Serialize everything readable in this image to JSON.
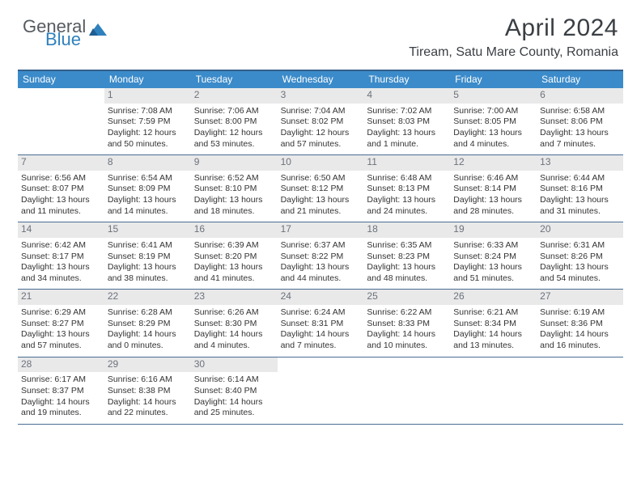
{
  "logo": {
    "text_general": "General",
    "text_blue": "Blue"
  },
  "title": "April 2024",
  "location": "Tiream, Satu Mare County, Romania",
  "colors": {
    "header_bg": "#3b8bca",
    "header_border_top": "#355f8b",
    "row_divider": "#4a6d92",
    "daynum_bg": "#e9e9ea",
    "daynum_text": "#6c727a",
    "body_text": "#333333",
    "logo_gray": "#555b60",
    "logo_blue": "#2f81bd"
  },
  "day_headers": [
    "Sunday",
    "Monday",
    "Tuesday",
    "Wednesday",
    "Thursday",
    "Friday",
    "Saturday"
  ],
  "weeks": [
    [
      {
        "empty": true
      },
      {
        "num": "1",
        "sunrise": "Sunrise: 7:08 AM",
        "sunset": "Sunset: 7:59 PM",
        "daylight1": "Daylight: 12 hours",
        "daylight2": "and 50 minutes."
      },
      {
        "num": "2",
        "sunrise": "Sunrise: 7:06 AM",
        "sunset": "Sunset: 8:00 PM",
        "daylight1": "Daylight: 12 hours",
        "daylight2": "and 53 minutes."
      },
      {
        "num": "3",
        "sunrise": "Sunrise: 7:04 AM",
        "sunset": "Sunset: 8:02 PM",
        "daylight1": "Daylight: 12 hours",
        "daylight2": "and 57 minutes."
      },
      {
        "num": "4",
        "sunrise": "Sunrise: 7:02 AM",
        "sunset": "Sunset: 8:03 PM",
        "daylight1": "Daylight: 13 hours",
        "daylight2": "and 1 minute."
      },
      {
        "num": "5",
        "sunrise": "Sunrise: 7:00 AM",
        "sunset": "Sunset: 8:05 PM",
        "daylight1": "Daylight: 13 hours",
        "daylight2": "and 4 minutes."
      },
      {
        "num": "6",
        "sunrise": "Sunrise: 6:58 AM",
        "sunset": "Sunset: 8:06 PM",
        "daylight1": "Daylight: 13 hours",
        "daylight2": "and 7 minutes."
      }
    ],
    [
      {
        "num": "7",
        "sunrise": "Sunrise: 6:56 AM",
        "sunset": "Sunset: 8:07 PM",
        "daylight1": "Daylight: 13 hours",
        "daylight2": "and 11 minutes."
      },
      {
        "num": "8",
        "sunrise": "Sunrise: 6:54 AM",
        "sunset": "Sunset: 8:09 PM",
        "daylight1": "Daylight: 13 hours",
        "daylight2": "and 14 minutes."
      },
      {
        "num": "9",
        "sunrise": "Sunrise: 6:52 AM",
        "sunset": "Sunset: 8:10 PM",
        "daylight1": "Daylight: 13 hours",
        "daylight2": "and 18 minutes."
      },
      {
        "num": "10",
        "sunrise": "Sunrise: 6:50 AM",
        "sunset": "Sunset: 8:12 PM",
        "daylight1": "Daylight: 13 hours",
        "daylight2": "and 21 minutes."
      },
      {
        "num": "11",
        "sunrise": "Sunrise: 6:48 AM",
        "sunset": "Sunset: 8:13 PM",
        "daylight1": "Daylight: 13 hours",
        "daylight2": "and 24 minutes."
      },
      {
        "num": "12",
        "sunrise": "Sunrise: 6:46 AM",
        "sunset": "Sunset: 8:14 PM",
        "daylight1": "Daylight: 13 hours",
        "daylight2": "and 28 minutes."
      },
      {
        "num": "13",
        "sunrise": "Sunrise: 6:44 AM",
        "sunset": "Sunset: 8:16 PM",
        "daylight1": "Daylight: 13 hours",
        "daylight2": "and 31 minutes."
      }
    ],
    [
      {
        "num": "14",
        "sunrise": "Sunrise: 6:42 AM",
        "sunset": "Sunset: 8:17 PM",
        "daylight1": "Daylight: 13 hours",
        "daylight2": "and 34 minutes."
      },
      {
        "num": "15",
        "sunrise": "Sunrise: 6:41 AM",
        "sunset": "Sunset: 8:19 PM",
        "daylight1": "Daylight: 13 hours",
        "daylight2": "and 38 minutes."
      },
      {
        "num": "16",
        "sunrise": "Sunrise: 6:39 AM",
        "sunset": "Sunset: 8:20 PM",
        "daylight1": "Daylight: 13 hours",
        "daylight2": "and 41 minutes."
      },
      {
        "num": "17",
        "sunrise": "Sunrise: 6:37 AM",
        "sunset": "Sunset: 8:22 PM",
        "daylight1": "Daylight: 13 hours",
        "daylight2": "and 44 minutes."
      },
      {
        "num": "18",
        "sunrise": "Sunrise: 6:35 AM",
        "sunset": "Sunset: 8:23 PM",
        "daylight1": "Daylight: 13 hours",
        "daylight2": "and 48 minutes."
      },
      {
        "num": "19",
        "sunrise": "Sunrise: 6:33 AM",
        "sunset": "Sunset: 8:24 PM",
        "daylight1": "Daylight: 13 hours",
        "daylight2": "and 51 minutes."
      },
      {
        "num": "20",
        "sunrise": "Sunrise: 6:31 AM",
        "sunset": "Sunset: 8:26 PM",
        "daylight1": "Daylight: 13 hours",
        "daylight2": "and 54 minutes."
      }
    ],
    [
      {
        "num": "21",
        "sunrise": "Sunrise: 6:29 AM",
        "sunset": "Sunset: 8:27 PM",
        "daylight1": "Daylight: 13 hours",
        "daylight2": "and 57 minutes."
      },
      {
        "num": "22",
        "sunrise": "Sunrise: 6:28 AM",
        "sunset": "Sunset: 8:29 PM",
        "daylight1": "Daylight: 14 hours",
        "daylight2": "and 0 minutes."
      },
      {
        "num": "23",
        "sunrise": "Sunrise: 6:26 AM",
        "sunset": "Sunset: 8:30 PM",
        "daylight1": "Daylight: 14 hours",
        "daylight2": "and 4 minutes."
      },
      {
        "num": "24",
        "sunrise": "Sunrise: 6:24 AM",
        "sunset": "Sunset: 8:31 PM",
        "daylight1": "Daylight: 14 hours",
        "daylight2": "and 7 minutes."
      },
      {
        "num": "25",
        "sunrise": "Sunrise: 6:22 AM",
        "sunset": "Sunset: 8:33 PM",
        "daylight1": "Daylight: 14 hours",
        "daylight2": "and 10 minutes."
      },
      {
        "num": "26",
        "sunrise": "Sunrise: 6:21 AM",
        "sunset": "Sunset: 8:34 PM",
        "daylight1": "Daylight: 14 hours",
        "daylight2": "and 13 minutes."
      },
      {
        "num": "27",
        "sunrise": "Sunrise: 6:19 AM",
        "sunset": "Sunset: 8:36 PM",
        "daylight1": "Daylight: 14 hours",
        "daylight2": "and 16 minutes."
      }
    ],
    [
      {
        "num": "28",
        "sunrise": "Sunrise: 6:17 AM",
        "sunset": "Sunset: 8:37 PM",
        "daylight1": "Daylight: 14 hours",
        "daylight2": "and 19 minutes."
      },
      {
        "num": "29",
        "sunrise": "Sunrise: 6:16 AM",
        "sunset": "Sunset: 8:38 PM",
        "daylight1": "Daylight: 14 hours",
        "daylight2": "and 22 minutes."
      },
      {
        "num": "30",
        "sunrise": "Sunrise: 6:14 AM",
        "sunset": "Sunset: 8:40 PM",
        "daylight1": "Daylight: 14 hours",
        "daylight2": "and 25 minutes."
      },
      {
        "empty": true
      },
      {
        "empty": true
      },
      {
        "empty": true
      },
      {
        "empty": true
      }
    ]
  ]
}
